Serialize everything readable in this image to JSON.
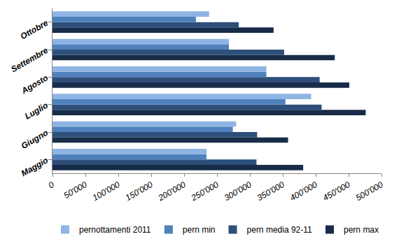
{
  "chart_data": {
    "type": "bar",
    "orientation": "horizontal",
    "categories": [
      "Maggio",
      "Giugno",
      "Luglio",
      "Agosto",
      "Settembre",
      "Ottobre"
    ],
    "series": [
      {
        "name": "pernottamenti 2011",
        "color": "#8eb4e3",
        "values": [
          234000,
          279000,
          393000,
          325000,
          268000,
          238000
        ]
      },
      {
        "name": "pern min",
        "color": "#4f81bd",
        "values": [
          234000,
          274000,
          354000,
          325000,
          268000,
          218000
        ]
      },
      {
        "name": "pern media 92-11",
        "color": "#2d4f7a",
        "values": [
          310000,
          311000,
          409000,
          406000,
          352000,
          283000
        ]
      },
      {
        "name": "pern max",
        "color": "#182b49",
        "values": [
          381000,
          358000,
          476000,
          451000,
          429000,
          336000
        ]
      }
    ],
    "xlim": [
      0,
      500000
    ],
    "xticks": [
      0,
      {
        "value": 50000,
        "label": "50'000"
      },
      {
        "value": 100000,
        "label": "100'000"
      },
      {
        "value": 150000,
        "label": "150'000"
      },
      {
        "value": 200000,
        "label": "200'000"
      },
      {
        "value": 250000,
        "label": "250'000"
      },
      {
        "value": 300000,
        "label": "300'000"
      },
      {
        "value": 350000,
        "label": "350'000"
      },
      {
        "value": 400000,
        "label": "400'000"
      },
      {
        "value": 450000,
        "label": "450'000"
      },
      {
        "value": 500000,
        "label": "500'000"
      }
    ],
    "grid": false,
    "legend": "bottom"
  }
}
